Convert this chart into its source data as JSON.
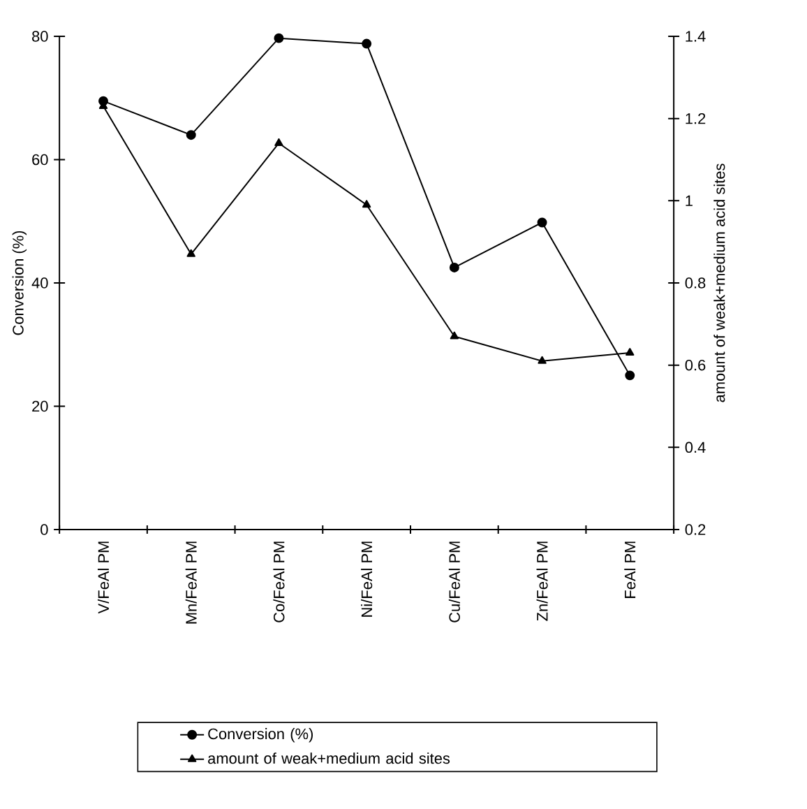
{
  "chart_data": {
    "type": "line",
    "ylabel": "Conversion (%)",
    "y2label": "amount of weak+medium acid sites",
    "categories": [
      "V/FeAl PM",
      "Mn/FeAl PM",
      "Co/FeAl PM",
      "Ni/FeAl PM",
      "Cu/FeAl PM",
      "Zn/FeAl PM",
      "FeAl PM"
    ],
    "ylim": [
      0,
      80
    ],
    "yticks": [
      0,
      20,
      40,
      60,
      80
    ],
    "y2lim": [
      0.2,
      1.4
    ],
    "y2ticks": [
      {
        "value": 0.2,
        "label": "0.2"
      },
      {
        "value": 0.4,
        "label": "0.4"
      },
      {
        "value": 0.6,
        "label": "0.6"
      },
      {
        "value": 0.8,
        "label": "0.8"
      },
      {
        "value": 1,
        "label": "1"
      },
      {
        "value": 1.2,
        "label": "1.2"
      },
      {
        "value": 1.4,
        "label": "1.4"
      }
    ],
    "legend": "bottom",
    "grid": false,
    "series": [
      {
        "name": "Conversion (%)",
        "color": "#000000",
        "marker": "circle",
        "values": [
          69.5,
          64,
          79.7,
          78.8,
          42.5,
          49.8,
          25
        ]
      },
      {
        "name": "amount of weak+medium acid sites",
        "color": "#000000",
        "marker": "triangle",
        "axis": "y2",
        "values": [
          1.23,
          0.87,
          1.14,
          0.99,
          0.67,
          0.61,
          0.63
        ]
      }
    ]
  }
}
